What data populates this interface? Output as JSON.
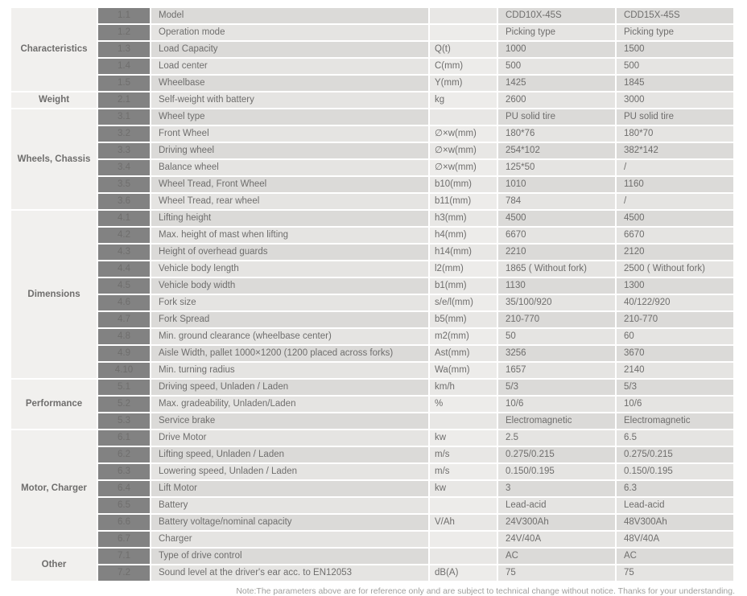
{
  "models": [
    "CDD10X-45S",
    "CDD15X-45S"
  ],
  "colors": {
    "index_cell_bg": "#828282",
    "category_cell_bg": "#f1f0ee",
    "row_dark": "#dbdad8",
    "row_light": "#e5e4e2",
    "text": "#6f6e6d",
    "note_text": "#a0a09e"
  },
  "table": {
    "sections": [
      {
        "category": "Characteristics",
        "rows": [
          {
            "no": "1.1",
            "param": "Model",
            "unit": "",
            "v1": "CDD10X-45S",
            "v2": "CDD15X-45S"
          },
          {
            "no": "1.2",
            "param": "Operation mode",
            "unit": "",
            "v1": "Picking type",
            "v2": "Picking type"
          },
          {
            "no": "1.3",
            "param": "Load Capacity",
            "unit": "Q(t)",
            "v1": "1000",
            "v2": "1500"
          },
          {
            "no": "1.4",
            "param": "Load center",
            "unit": "C(mm)",
            "v1": "500",
            "v2": "500"
          },
          {
            "no": "1.5",
            "param": "Wheelbase",
            "unit": "Y(mm)",
            "v1": "1425",
            "v2": "1845"
          }
        ]
      },
      {
        "category": "Weight",
        "rows": [
          {
            "no": "2.1",
            "param": "Self-weight with battery",
            "unit": "kg",
            "v1": "2600",
            "v2": "3000"
          }
        ]
      },
      {
        "category": "Wheels,\nChassis",
        "rows": [
          {
            "no": "3.1",
            "param": "Wheel type",
            "unit": "",
            "v1": "PU solid tire",
            "v2": "PU solid tire"
          },
          {
            "no": "3.2",
            "param": "Front Wheel",
            "unit": "∅×w(mm)",
            "v1": "180*76",
            "v2": "180*70"
          },
          {
            "no": "3.3",
            "param": "Driving wheel",
            "unit": "∅×w(mm)",
            "v1": "254*102",
            "v2": "382*142"
          },
          {
            "no": "3.4",
            "param": "Balance wheel",
            "unit": "∅×w(mm)",
            "v1": "125*50",
            "v2": "/"
          },
          {
            "no": "3.5",
            "param": "Wheel Tread, Front Wheel",
            "unit": "b10(mm)",
            "v1": "1010",
            "v2": "1160"
          },
          {
            "no": "3.6",
            "param": "Wheel Tread, rear wheel",
            "unit": "b11(mm)",
            "v1": "784",
            "v2": "/"
          }
        ]
      },
      {
        "category": "Dimensions",
        "rows": [
          {
            "no": "4.1",
            "param": "Lifting height",
            "unit": "h3(mm)",
            "v1": "4500",
            "v2": "4500"
          },
          {
            "no": "4.2",
            "param": "Max. height of mast when lifting",
            "unit": "h4(mm)",
            "v1": "6670",
            "v2": "6670"
          },
          {
            "no": "4.3",
            "param": "Height of overhead guards",
            "unit": "h14(mm)",
            "v1": "2210",
            "v2": "2120"
          },
          {
            "no": "4.4",
            "param": "Vehicle body length",
            "unit": "l2(mm)",
            "v1": "1865 ( Without fork)",
            "v2": "2500 ( Without fork)"
          },
          {
            "no": "4.5",
            "param": "Vehicle body width",
            "unit": "b1(mm)",
            "v1": "1130",
            "v2": "1300"
          },
          {
            "no": "4.6",
            "param": "Fork size",
            "unit": "s/e/l(mm)",
            "v1": "35/100/920",
            "v2": "40/122/920"
          },
          {
            "no": "4.7",
            "param": "Fork Spread",
            "unit": "b5(mm)",
            "v1": "210-770",
            "v2": "210-770"
          },
          {
            "no": "4.8",
            "param": "Min. ground clearance (wheelbase center)",
            "unit": "m2(mm)",
            "v1": "50",
            "v2": "60"
          },
          {
            "no": "4.9",
            "param": "Aisle Width, pallet 1000×1200 (1200 placed across forks)",
            "unit": "Ast(mm)",
            "v1": "3256",
            "v2": "3670"
          },
          {
            "no": "4.10",
            "param": "Min. turning radius",
            "unit": "Wa(mm)",
            "v1": "1657",
            "v2": "2140"
          }
        ]
      },
      {
        "category": "Performance",
        "rows": [
          {
            "no": "5.1",
            "param": "Driving speed, Unladen / Laden",
            "unit": "km/h",
            "v1": "5/3",
            "v2": "5/3"
          },
          {
            "no": "5.2",
            "param": "Max. gradeability, Unladen/Laden",
            "unit": "%",
            "v1": "10/6",
            "v2": "10/6"
          },
          {
            "no": "5.3",
            "param": "Service brake",
            "unit": "",
            "v1": "Electromagnetic",
            "v2": "Electromagnetic"
          }
        ]
      },
      {
        "category": "Motor,\nCharger",
        "rows": [
          {
            "no": "6.1",
            "param": "Drive Motor",
            "unit": "kw",
            "v1": "2.5",
            "v2": "6.5"
          },
          {
            "no": "6.2",
            "param": "Lifting speed, Unladen / Laden",
            "unit": "m/s",
            "v1": "0.275/0.215",
            "v2": "0.275/0.215"
          },
          {
            "no": "6.3",
            "param": "Lowering speed, Unladen / Laden",
            "unit": "m/s",
            "v1": "0.150/0.195",
            "v2": "0.150/0.195"
          },
          {
            "no": "6.4",
            "param": "Lift Motor",
            "unit": "kw",
            "v1": "3",
            "v2": "6.3"
          },
          {
            "no": "6.5",
            "param": "Battery",
            "unit": "",
            "v1": "Lead-acid",
            "v2": "Lead-acid"
          },
          {
            "no": "6.6",
            "param": "Battery voltage/nominal capacity",
            "unit": "V/Ah",
            "v1": "24V300Ah",
            "v2": "48V300Ah"
          },
          {
            "no": "6.7",
            "param": "Charger",
            "unit": "",
            "v1": "24V/40A",
            "v2": "48V/40A"
          }
        ]
      },
      {
        "category": "Other",
        "rows": [
          {
            "no": "7.1",
            "param": "Type of drive control",
            "unit": "",
            "v1": "AC",
            "v2": "AC"
          },
          {
            "no": "7.2",
            "param": "Sound level at the driver's ear acc. to EN12053",
            "unit": "dB(A)",
            "v1": "75",
            "v2": "75"
          }
        ]
      }
    ]
  },
  "note": "Note:The parameters above are for reference only and are subject to technical change without notice. Thanks for your understanding."
}
